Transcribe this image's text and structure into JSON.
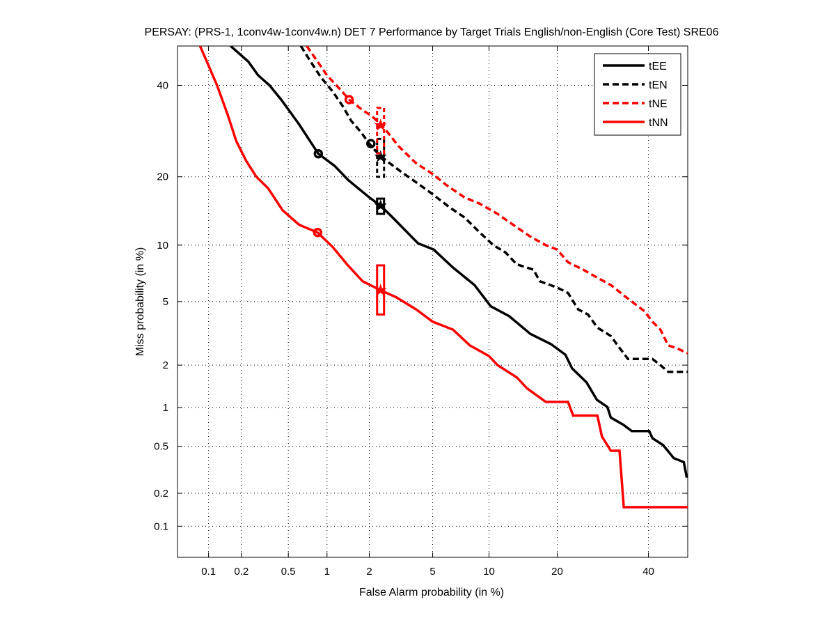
{
  "chart_data": {
    "type": "line",
    "title": "PERSAY: (PRS-1, 1conv4w-1conv4w.n) DET 7 Performance by Target Trials English/non-English (Core Test) SRE06",
    "xlabel": "False Alarm probability (in %)",
    "ylabel": "Miss probability (in %)",
    "scale": "probit",
    "xlim": [
      0.05,
      50
    ],
    "ylim": [
      0.05,
      50
    ],
    "grid": true,
    "xticks": [
      0.1,
      0.2,
      0.5,
      1,
      2,
      5,
      10,
      20,
      40
    ],
    "xtick_labels": [
      "0.1",
      "0.2",
      "0.5",
      "1",
      "2",
      "5",
      "10",
      "20",
      "40"
    ],
    "yticks": [
      0.1,
      0.2,
      0.5,
      1,
      2,
      5,
      10,
      20,
      40
    ],
    "ytick_labels": [
      "0.1",
      "0.2",
      "0.5",
      "1",
      "2",
      "5",
      "10",
      "20",
      "40"
    ],
    "legend_position": "top-right",
    "series": [
      {
        "name": "tEE",
        "color": "#000000",
        "style": "solid",
        "points": [
          [
            0.16,
            50
          ],
          [
            0.23,
            46
          ],
          [
            0.28,
            42.5
          ],
          [
            0.35,
            40
          ],
          [
            0.44,
            36.4
          ],
          [
            0.61,
            30.7
          ],
          [
            0.86,
            24.4
          ],
          [
            1.14,
            22
          ],
          [
            1.43,
            19.4
          ],
          [
            2.0,
            16.5
          ],
          [
            2.38,
            15.2
          ],
          [
            2.76,
            13.8
          ],
          [
            4.1,
            10.2
          ],
          [
            5.07,
            9.5
          ],
          [
            6.5,
            7.7
          ],
          [
            8.45,
            6.2
          ],
          [
            10.2,
            4.7
          ],
          [
            12.5,
            4.1
          ],
          [
            15.5,
            3.2
          ],
          [
            18.9,
            2.75
          ],
          [
            21.5,
            2.35
          ],
          [
            22.8,
            1.9
          ],
          [
            25.7,
            1.52
          ],
          [
            27.9,
            1.14
          ],
          [
            30.2,
            1.01
          ],
          [
            31,
            0.84
          ],
          [
            33.9,
            0.74
          ],
          [
            35.9,
            0.66
          ],
          [
            40.2,
            0.66
          ],
          [
            41,
            0.58
          ],
          [
            43.7,
            0.51
          ],
          [
            46.4,
            0.4
          ],
          [
            49,
            0.37
          ],
          [
            49.7,
            0.28
          ],
          [
            50,
            0.28
          ]
        ],
        "min_dcf_point": [
          0.86,
          24.4
        ],
        "actual_dcf_point": [
          2.38,
          15.2
        ],
        "confidence_box": {
          "x": 2.38,
          "y_low": 14,
          "y_high": 16.3
        }
      },
      {
        "name": "tEN",
        "color": "#000000",
        "style": "dashed",
        "points": [
          [
            0.63,
            50
          ],
          [
            0.75,
            46
          ],
          [
            0.9,
            42
          ],
          [
            1.1,
            38.5
          ],
          [
            1.3,
            35
          ],
          [
            1.5,
            31.5
          ],
          [
            1.75,
            29
          ],
          [
            2.0,
            26.5
          ],
          [
            2.2,
            25
          ],
          [
            2.6,
            23
          ],
          [
            3.2,
            21
          ],
          [
            4.0,
            19
          ],
          [
            5.0,
            17
          ],
          [
            6.2,
            15
          ],
          [
            7.5,
            13.5
          ],
          [
            9,
            11.5
          ],
          [
            10.5,
            10
          ],
          [
            12,
            9.2
          ],
          [
            13.5,
            8
          ],
          [
            16,
            7.5
          ],
          [
            17,
            6.5
          ],
          [
            20,
            6
          ],
          [
            22,
            5.6
          ],
          [
            24,
            4.5
          ],
          [
            26,
            4.2
          ],
          [
            28,
            3.5
          ],
          [
            31,
            3.1
          ],
          [
            33,
            2.6
          ],
          [
            35,
            2.2
          ],
          [
            41,
            2.2
          ],
          [
            43,
            2.0
          ],
          [
            45,
            1.8
          ],
          [
            50,
            1.8
          ]
        ],
        "min_dcf_point": [
          2.05,
          26.5
        ],
        "actual_dcf_point": [
          2.38,
          23.8
        ],
        "confidence_box": {
          "x": 2.38,
          "y_low": 20,
          "y_high": 27.5
        }
      },
      {
        "name": "tNE",
        "color": "#ff0000",
        "style": "dashed",
        "points": [
          [
            0.7,
            50
          ],
          [
            0.85,
            46
          ],
          [
            1.0,
            42.5
          ],
          [
            1.25,
            39
          ],
          [
            1.45,
            36.5
          ],
          [
            1.8,
            34
          ],
          [
            2.1,
            32.5
          ],
          [
            2.5,
            30
          ],
          [
            3.1,
            26
          ],
          [
            4.0,
            22.5
          ],
          [
            5.0,
            20.5
          ],
          [
            6.0,
            18.5
          ],
          [
            7.5,
            16.5
          ],
          [
            9,
            15.5
          ],
          [
            11,
            14
          ],
          [
            13,
            12.5
          ],
          [
            15.5,
            11
          ],
          [
            18,
            10
          ],
          [
            20,
            9.5
          ],
          [
            22,
            8.2
          ],
          [
            25,
            7.5
          ],
          [
            28,
            6.8
          ],
          [
            31,
            6.2
          ],
          [
            35,
            5.2
          ],
          [
            39,
            4.4
          ],
          [
            41,
            3.8
          ],
          [
            43,
            3.4
          ],
          [
            45,
            2.7
          ],
          [
            47,
            2.6
          ],
          [
            50,
            2.4
          ]
        ],
        "min_dcf_point": [
          1.45,
          36.5
        ],
        "actual_dcf_point": [
          2.38,
          30.5
        ],
        "confidence_box": {
          "x": 2.38,
          "y_low": 24.5,
          "y_high": 34.5
        }
      },
      {
        "name": "tNN",
        "color": "#ff0000",
        "style": "solid",
        "points": [
          [
            0.083,
            50
          ],
          [
            0.1,
            45
          ],
          [
            0.12,
            40
          ],
          [
            0.15,
            33
          ],
          [
            0.18,
            27
          ],
          [
            0.22,
            23
          ],
          [
            0.27,
            20
          ],
          [
            0.34,
            18
          ],
          [
            0.45,
            14.5
          ],
          [
            0.61,
            12.5
          ],
          [
            0.85,
            11.5
          ],
          [
            1.1,
            9.8
          ],
          [
            1.4,
            8
          ],
          [
            1.8,
            6.5
          ],
          [
            2.38,
            5.8
          ],
          [
            3.0,
            5.3
          ],
          [
            4.0,
            4.5
          ],
          [
            5.0,
            3.8
          ],
          [
            6.5,
            3.4
          ],
          [
            8.0,
            2.7
          ],
          [
            10,
            2.3
          ],
          [
            11,
            2.0
          ],
          [
            13.5,
            1.65
          ],
          [
            15,
            1.38
          ],
          [
            18,
            1.1
          ],
          [
            22,
            1.1
          ],
          [
            23,
            0.87
          ],
          [
            28,
            0.87
          ],
          [
            29,
            0.6
          ],
          [
            31,
            0.46
          ],
          [
            33,
            0.46
          ],
          [
            34,
            0.15
          ],
          [
            50,
            0.15
          ]
        ],
        "min_dcf_point": [
          0.85,
          11.5
        ],
        "actual_dcf_point": [
          2.38,
          5.8
        ],
        "confidence_box": {
          "x": 2.38,
          "y_low": 4.2,
          "y_high": 7.9
        }
      }
    ]
  }
}
